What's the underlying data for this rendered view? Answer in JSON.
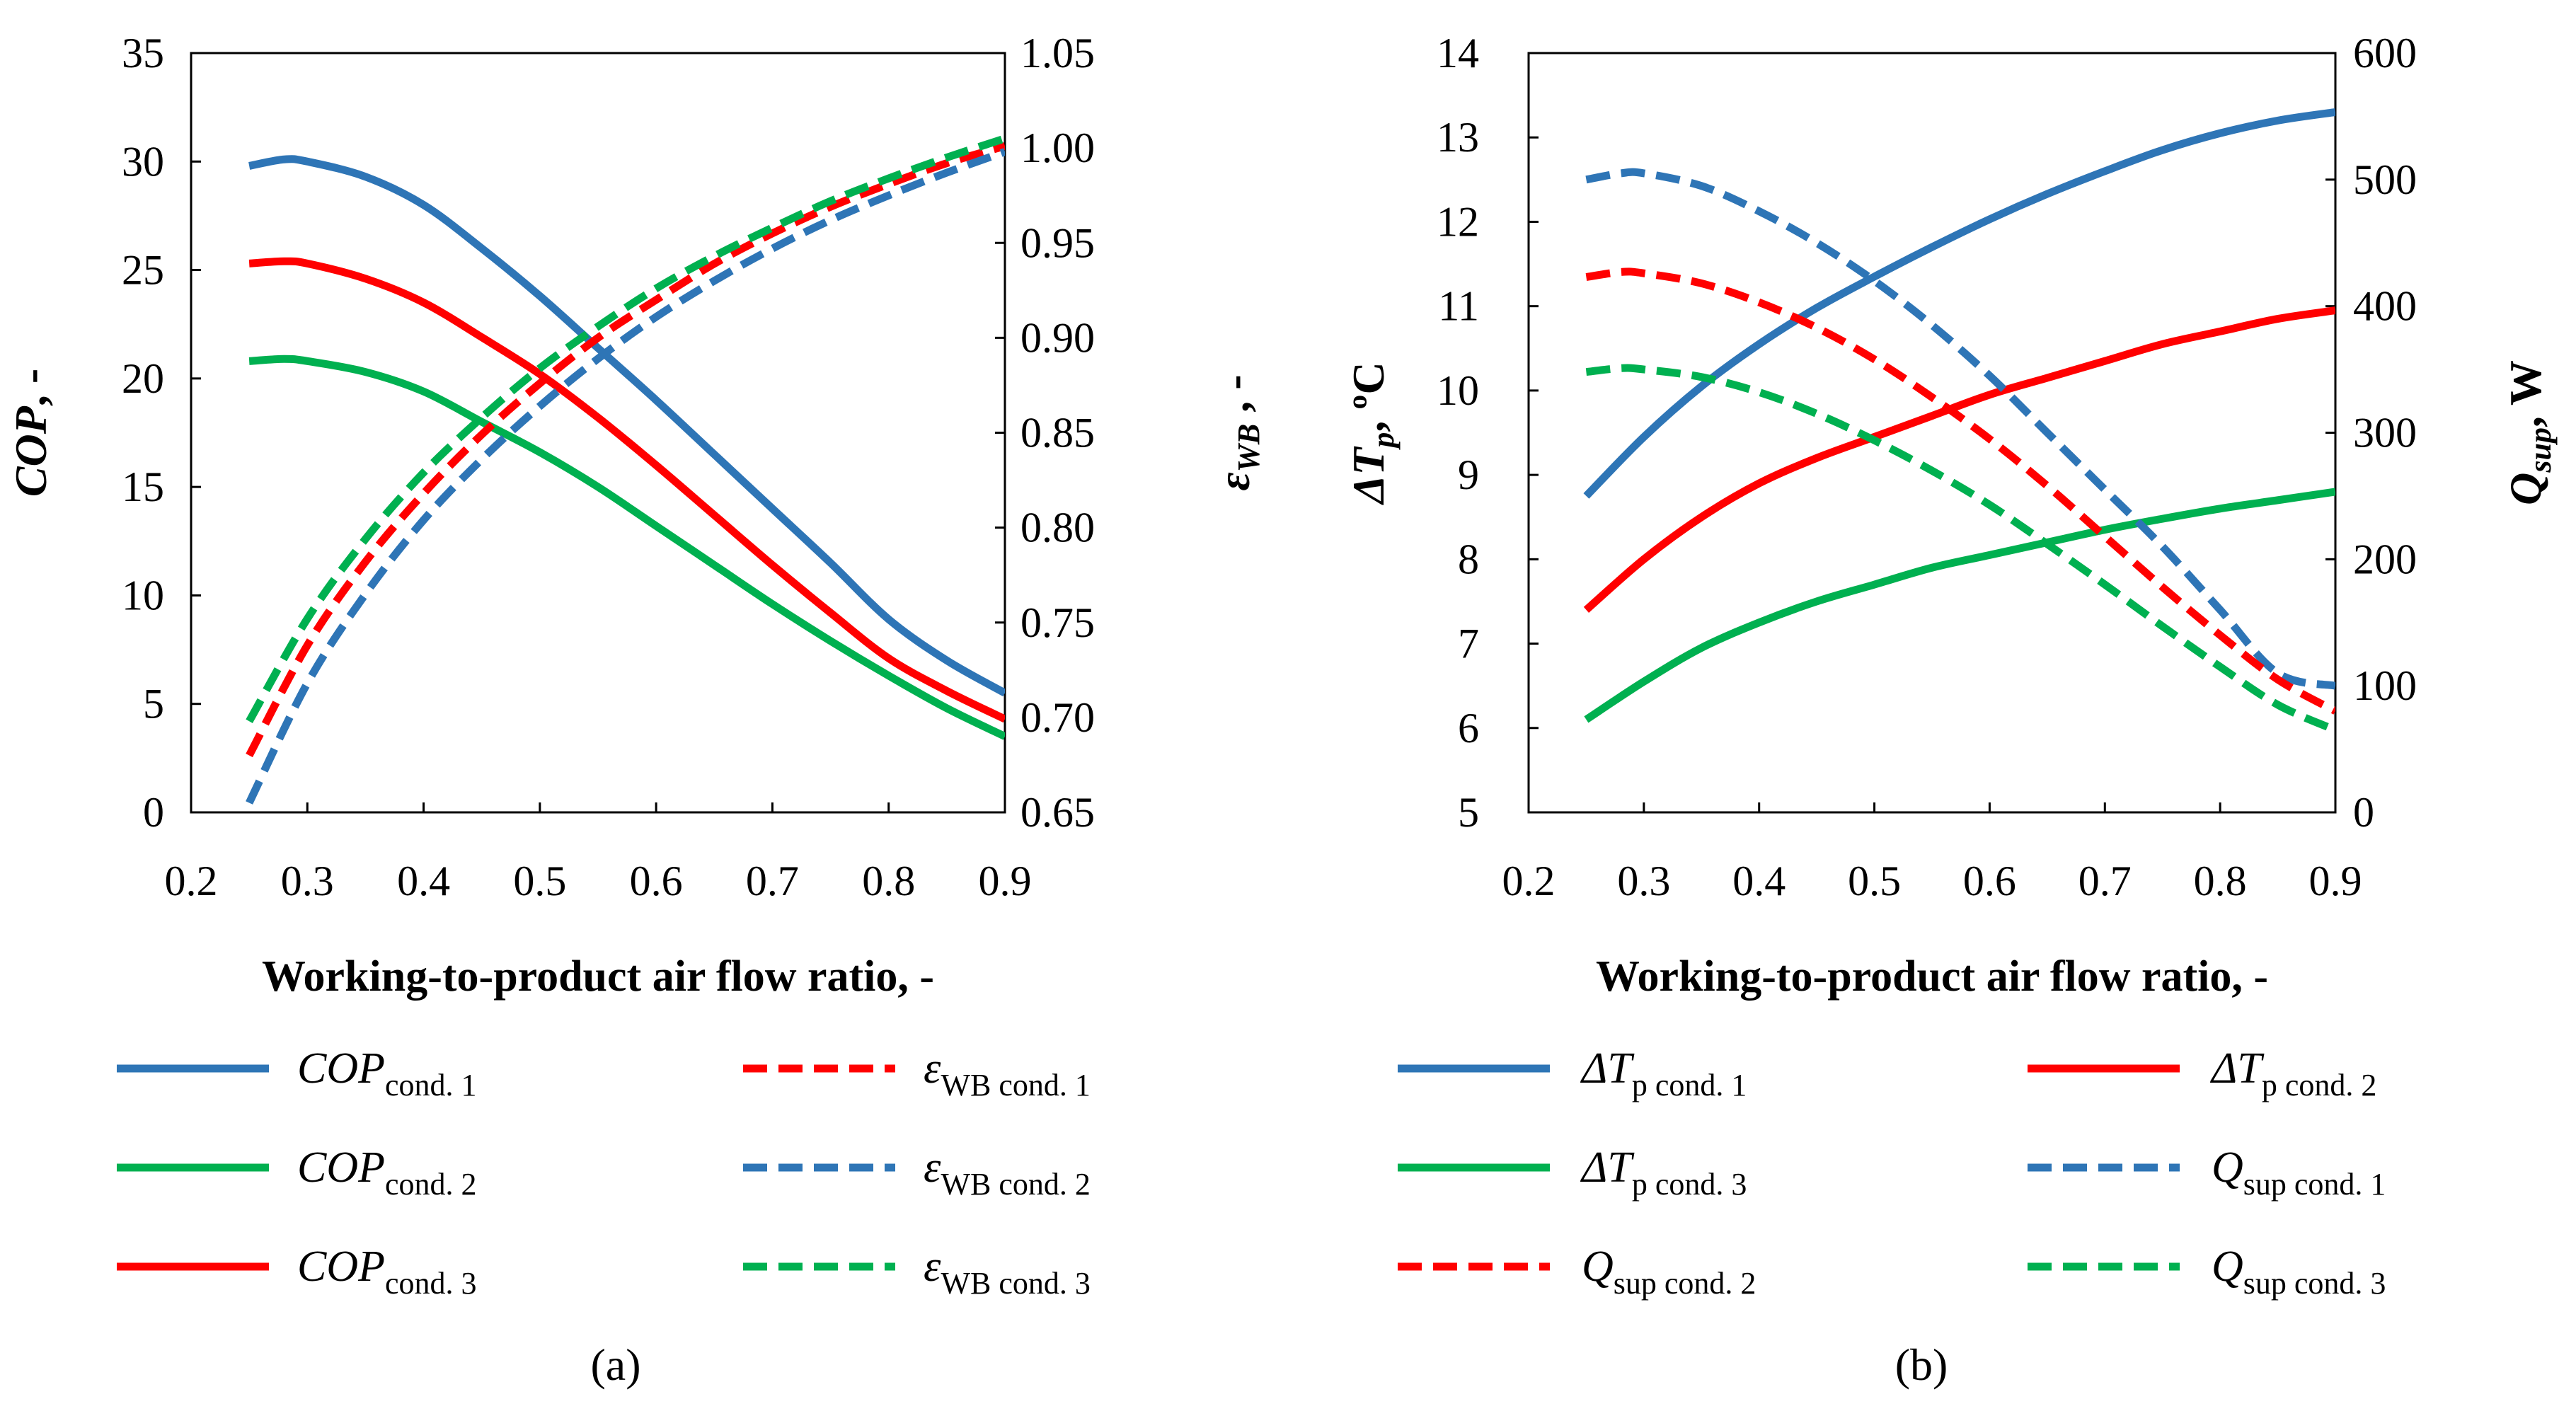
{
  "chart_data": [
    {
      "type": "line",
      "panel_label": "(a)",
      "xlabel": "Working-to-product air flow ratio, -",
      "ylabel_left": {
        "main": "COP",
        "suffix": ", -"
      },
      "ylabel_right": {
        "main": "ε",
        "sub": "WB",
        "suffix": " , -"
      },
      "xlim": [
        0.2,
        0.9
      ],
      "ylim_left": [
        0,
        35
      ],
      "ylim_right": [
        0.65,
        1.05
      ],
      "x_ticks": [
        "0.2",
        "0.3",
        "0.4",
        "0.5",
        "0.6",
        "0.7",
        "0.8",
        "0.9"
      ],
      "y_left_ticks": [
        "0",
        "5",
        "10",
        "15",
        "20",
        "25",
        "30",
        "35"
      ],
      "y_right_ticks": [
        "0.65",
        "0.70",
        "0.75",
        "0.80",
        "0.85",
        "0.90",
        "0.95",
        "1.00",
        "1.05"
      ],
      "grid": false,
      "legend_position": "bottom",
      "series": [
        {
          "name": "COP cond. 1",
          "legend_main": "COP",
          "legend_sub": "cond. 1",
          "axis": "left",
          "color": "#2E75B6",
          "dash": false,
          "x": [
            0.25,
            0.28,
            0.3,
            0.35,
            0.4,
            0.45,
            0.5,
            0.55,
            0.6,
            0.65,
            0.7,
            0.75,
            0.8,
            0.85,
            0.9
          ],
          "y": [
            29.8,
            30.1,
            30.0,
            29.3,
            28.0,
            26.0,
            23.8,
            21.4,
            19.0,
            16.5,
            14.0,
            11.5,
            8.9,
            7.0,
            5.5
          ]
        },
        {
          "name": "COP cond. 2",
          "legend_main": "COP",
          "legend_sub": "cond. 2",
          "axis": "left",
          "color": "#00B050",
          "dash": false,
          "x": [
            0.25,
            0.28,
            0.3,
            0.35,
            0.4,
            0.45,
            0.5,
            0.55,
            0.6,
            0.65,
            0.7,
            0.75,
            0.8,
            0.85,
            0.9
          ],
          "y": [
            20.8,
            20.9,
            20.8,
            20.3,
            19.4,
            18.0,
            16.6,
            15.0,
            13.2,
            11.4,
            9.6,
            7.9,
            6.3,
            4.8,
            3.5
          ]
        },
        {
          "name": "COP cond. 3",
          "legend_main": "COP",
          "legend_sub": "cond. 3",
          "axis": "left",
          "color": "#FF0000",
          "dash": false,
          "x": [
            0.25,
            0.28,
            0.3,
            0.35,
            0.4,
            0.45,
            0.5,
            0.55,
            0.6,
            0.65,
            0.7,
            0.75,
            0.8,
            0.85,
            0.9
          ],
          "y": [
            25.3,
            25.4,
            25.3,
            24.6,
            23.5,
            21.9,
            20.2,
            18.2,
            16.0,
            13.7,
            11.4,
            9.2,
            7.1,
            5.6,
            4.3
          ]
        },
        {
          "name": "εWB cond. 1",
          "legend_main": "ε",
          "legend_sub": "WB cond. 1",
          "axis": "right",
          "color": "#FF0000",
          "dash": true,
          "x": [
            0.25,
            0.3,
            0.35,
            0.4,
            0.45,
            0.5,
            0.55,
            0.6,
            0.65,
            0.7,
            0.75,
            0.8,
            0.85,
            0.9
          ],
          "y": [
            0.68,
            0.738,
            0.782,
            0.818,
            0.849,
            0.876,
            0.9,
            0.92,
            0.939,
            0.955,
            0.969,
            0.981,
            0.992,
            1.001
          ]
        },
        {
          "name": "εWB cond. 2",
          "legend_main": "ε",
          "legend_sub": "WB cond. 2",
          "axis": "right",
          "color": "#2E75B6",
          "dash": true,
          "x": [
            0.25,
            0.3,
            0.35,
            0.4,
            0.45,
            0.5,
            0.55,
            0.6,
            0.65,
            0.7,
            0.75,
            0.8,
            0.85,
            0.9
          ],
          "y": [
            0.655,
            0.718,
            0.765,
            0.804,
            0.836,
            0.864,
            0.889,
            0.911,
            0.93,
            0.947,
            0.962,
            0.975,
            0.987,
            0.998
          ]
        },
        {
          "name": "εWB cond. 3",
          "legend_main": "ε",
          "legend_sub": "WB cond. 3",
          "axis": "right",
          "color": "#00B050",
          "dash": true,
          "x": [
            0.25,
            0.3,
            0.35,
            0.4,
            0.45,
            0.5,
            0.55,
            0.6,
            0.65,
            0.7,
            0.75,
            0.8,
            0.85,
            0.9
          ],
          "y": [
            0.698,
            0.752,
            0.794,
            0.829,
            0.858,
            0.884,
            0.906,
            0.926,
            0.943,
            0.958,
            0.972,
            0.984,
            0.995,
            1.005
          ]
        }
      ],
      "legend_order": [
        0,
        3,
        1,
        4,
        2,
        5
      ]
    },
    {
      "type": "line",
      "panel_label": "(b)",
      "xlabel": "Working-to-product air flow ratio, -",
      "ylabel_left": {
        "main": "ΔT",
        "sub": "p",
        "suffix": ", ºC"
      },
      "ylabel_right": {
        "main": "Q",
        "sub": "sup",
        "suffix": ", W"
      },
      "xlim": [
        0.2,
        0.9
      ],
      "ylim_left": [
        5,
        14
      ],
      "ylim_right": [
        0,
        600
      ],
      "x_ticks": [
        "0.2",
        "0.3",
        "0.4",
        "0.5",
        "0.6",
        "0.7",
        "0.8",
        "0.9"
      ],
      "y_left_ticks": [
        "5",
        "6",
        "7",
        "8",
        "9",
        "10",
        "11",
        "12",
        "13",
        "14"
      ],
      "y_right_ticks": [
        "0",
        "100",
        "200",
        "300",
        "400",
        "500",
        "600"
      ],
      "grid": false,
      "legend_position": "bottom",
      "series": [
        {
          "name": "ΔTp cond. 1",
          "legend_main": "ΔT",
          "legend_sub": "p cond. 1",
          "axis": "left",
          "color": "#2E75B6",
          "dash": false,
          "x": [
            0.25,
            0.3,
            0.35,
            0.4,
            0.45,
            0.5,
            0.55,
            0.6,
            0.65,
            0.7,
            0.75,
            0.8,
            0.85,
            0.9
          ],
          "y": [
            8.75,
            9.45,
            10.05,
            10.55,
            10.98,
            11.35,
            11.7,
            12.03,
            12.33,
            12.6,
            12.85,
            13.05,
            13.2,
            13.3
          ]
        },
        {
          "name": "ΔTp cond. 2",
          "legend_main": "ΔT",
          "legend_sub": "p cond. 2",
          "axis": "left",
          "color": "#FF0000",
          "dash": false,
          "x": [
            0.25,
            0.3,
            0.35,
            0.4,
            0.45,
            0.5,
            0.55,
            0.6,
            0.65,
            0.7,
            0.75,
            0.8,
            0.85,
            0.9
          ],
          "y": [
            7.4,
            8.0,
            8.5,
            8.9,
            9.2,
            9.45,
            9.7,
            9.95,
            10.15,
            10.35,
            10.55,
            10.7,
            10.85,
            10.95
          ]
        },
        {
          "name": "ΔTp cond. 3",
          "legend_main": "ΔT",
          "legend_sub": "p cond. 3",
          "axis": "left",
          "color": "#00B050",
          "dash": false,
          "x": [
            0.25,
            0.3,
            0.35,
            0.4,
            0.45,
            0.5,
            0.55,
            0.6,
            0.65,
            0.7,
            0.75,
            0.8,
            0.85,
            0.9
          ],
          "y": [
            6.1,
            6.55,
            6.95,
            7.25,
            7.5,
            7.7,
            7.9,
            8.05,
            8.2,
            8.35,
            8.48,
            8.6,
            8.7,
            8.8
          ]
        },
        {
          "name": "Qsup cond. 1",
          "legend_main": "Q",
          "legend_sub": "sup cond. 1",
          "axis": "right",
          "color": "#2E75B6",
          "dash": true,
          "x": [
            0.25,
            0.28,
            0.3,
            0.35,
            0.4,
            0.45,
            0.5,
            0.55,
            0.6,
            0.65,
            0.7,
            0.75,
            0.8,
            0.85,
            0.9
          ],
          "y": [
            500,
            505,
            505,
            495,
            475,
            450,
            420,
            385,
            345,
            300,
            255,
            210,
            160,
            110,
            100
          ]
        },
        {
          "name": "Qsup cond. 2",
          "legend_main": "Q",
          "legend_sub": "sup cond. 2",
          "axis": "right",
          "color": "#FF0000",
          "dash": true,
          "x": [
            0.25,
            0.28,
            0.3,
            0.35,
            0.4,
            0.45,
            0.5,
            0.55,
            0.6,
            0.65,
            0.7,
            0.75,
            0.8,
            0.85,
            0.9
          ],
          "y": [
            423,
            427,
            426,
            418,
            403,
            383,
            358,
            328,
            295,
            258,
            218,
            178,
            140,
            105,
            80
          ]
        },
        {
          "name": "Qsup cond. 3",
          "legend_main": "Q",
          "legend_sub": "sup cond. 3",
          "axis": "right",
          "color": "#00B050",
          "dash": true,
          "x": [
            0.25,
            0.28,
            0.3,
            0.35,
            0.4,
            0.45,
            0.5,
            0.55,
            0.6,
            0.65,
            0.7,
            0.75,
            0.8,
            0.85,
            0.9
          ],
          "y": [
            348,
            351,
            350,
            344,
            332,
            315,
            294,
            270,
            243,
            212,
            180,
            147,
            115,
            85,
            65
          ]
        }
      ],
      "legend_order": [
        0,
        1,
        2,
        3,
        4,
        5
      ]
    }
  ]
}
